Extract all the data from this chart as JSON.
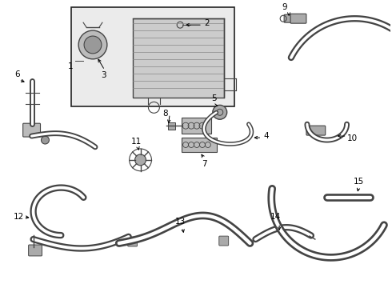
{
  "background_color": "#ffffff",
  "line_color": "#444444",
  "box_fill": "#ebebeb",
  "box_border": "#222222",
  "label_color": "#000000",
  "fig_width": 4.9,
  "fig_height": 3.6,
  "dpi": 100
}
